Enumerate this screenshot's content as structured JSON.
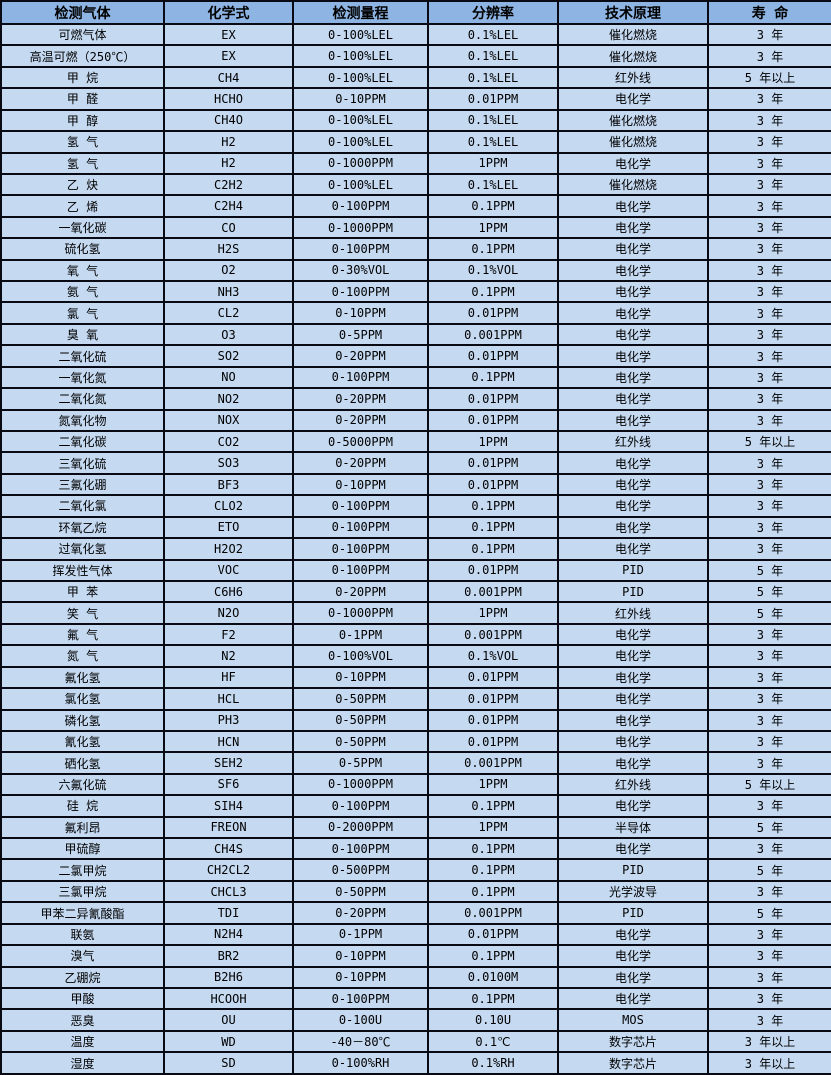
{
  "colors": {
    "header_bg": "#8db4e2",
    "row_bg": "#c5d9f1",
    "border": "#0a0a14",
    "text": "#000000"
  },
  "table": {
    "columns": [
      "检测气体",
      "化学式",
      "检测量程",
      "分辨率",
      "技术原理",
      "寿 命"
    ],
    "rows": [
      [
        "可燃气体",
        "EX",
        "0-100%LEL",
        "0.1%LEL",
        "催化燃烧",
        "3 年"
      ],
      [
        "高温可燃（250℃）",
        "EX",
        "0-100%LEL",
        "0.1%LEL",
        "催化燃烧",
        "3 年"
      ],
      [
        "甲 烷",
        "CH4",
        "0-100%LEL",
        "0.1%LEL",
        "红外线",
        "5 年以上"
      ],
      [
        "甲 醛",
        "HCHO",
        "0-10PPM",
        "0.01PPM",
        "电化学",
        "3 年"
      ],
      [
        "甲 醇",
        "CH4O",
        "0-100%LEL",
        "0.1%LEL",
        "催化燃烧",
        "3 年"
      ],
      [
        "氢 气",
        "H2",
        "0-100%LEL",
        "0.1%LEL",
        "催化燃烧",
        "3 年"
      ],
      [
        "氢 气",
        "H2",
        "0-1000PPM",
        "1PPM",
        "电化学",
        "3 年"
      ],
      [
        "乙 炔",
        "C2H2",
        "0-100%LEL",
        "0.1%LEL",
        "催化燃烧",
        "3 年"
      ],
      [
        "乙 烯",
        "C2H4",
        "0-100PPM",
        "0.1PPM",
        "电化学",
        "3 年"
      ],
      [
        "一氧化碳",
        "CO",
        "0-1000PPM",
        "1PPM",
        "电化学",
        "3 年"
      ],
      [
        "硫化氢",
        "H2S",
        "0-100PPM",
        "0.1PPM",
        "电化学",
        "3 年"
      ],
      [
        "氧 气",
        "O2",
        "0-30%VOL",
        "0.1%VOL",
        "电化学",
        "3 年"
      ],
      [
        "氨 气",
        "NH3",
        "0-100PPM",
        "0.1PPM",
        "电化学",
        "3 年"
      ],
      [
        "氯 气",
        "CL2",
        "0-10PPM",
        "0.01PPM",
        "电化学",
        "3 年"
      ],
      [
        "臭 氧",
        "O3",
        "0-5PPM",
        "0.001PPM",
        "电化学",
        "3 年"
      ],
      [
        "二氧化硫",
        "SO2",
        "0-20PPM",
        "0.01PPM",
        "电化学",
        "3 年"
      ],
      [
        "一氧化氮",
        "NO",
        "0-100PPM",
        "0.1PPM",
        "电化学",
        "3 年"
      ],
      [
        "二氧化氮",
        "NO2",
        "0-20PPM",
        "0.01PPM",
        "电化学",
        "3 年"
      ],
      [
        "氮氧化物",
        "NOX",
        "0-20PPM",
        "0.01PPM",
        "电化学",
        "3 年"
      ],
      [
        "二氧化碳",
        "CO2",
        "0-5000PPM",
        "1PPM",
        "红外线",
        "5 年以上"
      ],
      [
        "三氧化硫",
        "SO3",
        "0-20PPM",
        "0.01PPM",
        "电化学",
        "3 年"
      ],
      [
        "三氟化硼",
        "BF3",
        "0-10PPM",
        "0.01PPM",
        "电化学",
        "3 年"
      ],
      [
        "二氧化氯",
        "CLO2",
        "0-100PPM",
        "0.1PPM",
        "电化学",
        "3 年"
      ],
      [
        "环氧乙烷",
        "ETO",
        "0-100PPM",
        "0.1PPM",
        "电化学",
        "3 年"
      ],
      [
        "过氧化氢",
        "H2O2",
        "0-100PPM",
        "0.1PPM",
        "电化学",
        "3 年"
      ],
      [
        "挥发性气体",
        "VOC",
        "0-100PPM",
        "0.01PPM",
        "PID",
        "5 年"
      ],
      [
        "甲 苯",
        "C6H6",
        "0-20PPM",
        "0.001PPM",
        "PID",
        "5 年"
      ],
      [
        "笑 气",
        "N2O",
        "0-1000PPM",
        "1PPM",
        "红外线",
        "5 年"
      ],
      [
        "氟 气",
        "F2",
        "0-1PPM",
        "0.001PPM",
        "电化学",
        "3 年"
      ],
      [
        "氮 气",
        "N2",
        "0-100%VOL",
        "0.1%VOL",
        "电化学",
        "3 年"
      ],
      [
        "氟化氢",
        "HF",
        "0-10PPM",
        "0.01PPM",
        "电化学",
        "3 年"
      ],
      [
        "氯化氢",
        "HCL",
        "0-50PPM",
        "0.01PPM",
        "电化学",
        "3 年"
      ],
      [
        "磷化氢",
        "PH3",
        "0-50PPM",
        "0.01PPM",
        "电化学",
        "3 年"
      ],
      [
        "氰化氢",
        "HCN",
        "0-50PPM",
        "0.01PPM",
        "电化学",
        "3 年"
      ],
      [
        "硒化氢",
        "SEH2",
        "0-5PPM",
        "0.001PPM",
        "电化学",
        "3 年"
      ],
      [
        "六氟化硫",
        "SF6",
        "0-1000PPM",
        "1PPM",
        "红外线",
        "5 年以上"
      ],
      [
        "硅 烷",
        "SIH4",
        "0-100PPM",
        "0.1PPM",
        "电化学",
        "3 年"
      ],
      [
        "氟利昂",
        "FREON",
        "0-2000PPM",
        "1PPM",
        "半导体",
        "5 年"
      ],
      [
        "甲硫醇",
        "CH4S",
        "0-100PPM",
        "0.1PPM",
        "电化学",
        "3 年"
      ],
      [
        "二氯甲烷",
        "CH2CL2",
        "0-500PPM",
        "0.1PPM",
        "PID",
        "5 年"
      ],
      [
        "三氯甲烷",
        "CHCL3",
        "0-50PPM",
        "0.1PPM",
        "光学波导",
        "3 年"
      ],
      [
        "甲苯二异氰酸酯",
        "TDI",
        "0-20PPM",
        "0.001PPM",
        "PID",
        "5 年"
      ],
      [
        "联氨",
        "N2H4",
        "0-1PPM",
        "0.01PPM",
        "电化学",
        "3 年"
      ],
      [
        "溴气",
        "BR2",
        "0-10PPM",
        "0.1PPM",
        "电化学",
        "3 年"
      ],
      [
        "乙硼烷",
        "B2H6",
        "0-10PPM",
        "0.0100M",
        "电化学",
        "3 年"
      ],
      [
        "甲酸",
        "HCOOH",
        "0-100PPM",
        "0.1PPM",
        "电化学",
        "3 年"
      ],
      [
        "恶臭",
        "OU",
        "0-100U",
        "0.10U",
        "MOS",
        "3 年"
      ],
      [
        "温度",
        "WD",
        "-40－80℃",
        "0.1℃",
        "数字芯片",
        "3 年以上"
      ],
      [
        "湿度",
        "SD",
        "0-100%RH",
        "0.1%RH",
        "数字芯片",
        "3 年以上"
      ]
    ]
  }
}
